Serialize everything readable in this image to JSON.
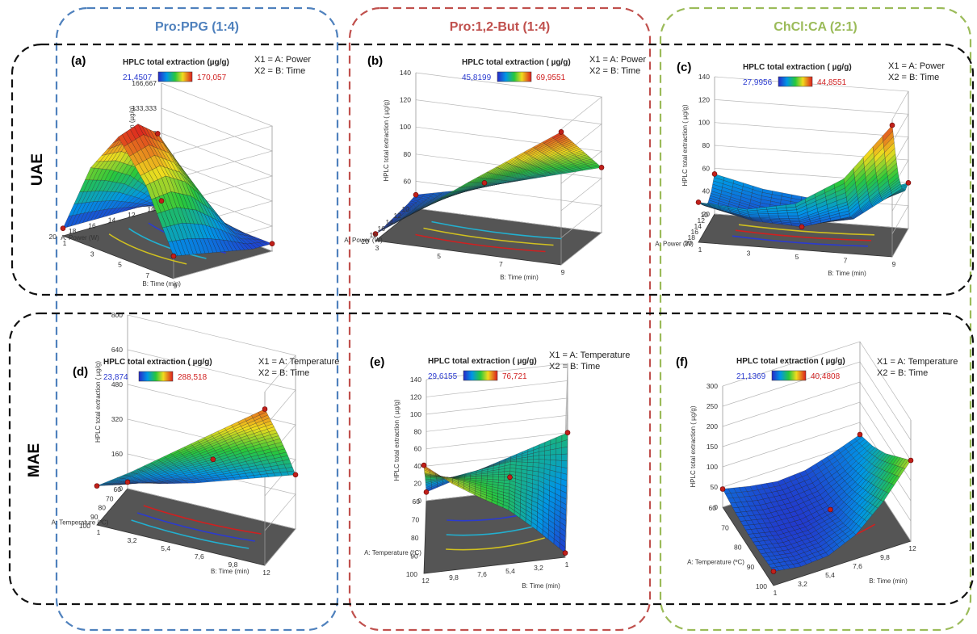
{
  "columns": [
    {
      "label": "Pro:PPG (1:4)",
      "color": "#4f81bd"
    },
    {
      "label": "Pro:1,2-But (1:4)",
      "color": "#c0504d"
    },
    {
      "label": "ChCl:CA (2:1)",
      "color": "#9bbb59"
    }
  ],
  "rows": [
    {
      "label": "UAE"
    },
    {
      "label": "MAE"
    }
  ],
  "chart_data": [
    {
      "type": "surface3d",
      "panel_label": "(a)",
      "legend": {
        "title": "HPLC total extraction (µg/g)",
        "min": "21,4507",
        "max": "170,057"
      },
      "factors": [
        "X1 = A: Power",
        "X2 = B: Time"
      ],
      "zlabel": "HPLC total extraction (µg/g)",
      "xlabel": "A: Power (W)",
      "ylabel": "B: Time (min)",
      "xticks": [
        "10",
        "12",
        "14",
        "16",
        "18",
        "20"
      ],
      "yticks": [
        "1",
        "3",
        "5",
        "7",
        "9"
      ],
      "zticks": [
        "0",
        "33,3333",
        "66,6667",
        "100",
        "133,333",
        "166,667"
      ],
      "zlim": [
        0,
        166.667
      ],
      "surface": [
        [
          10,
          10,
          10,
          10,
          10
        ],
        [
          10,
          25,
          40,
          30,
          10
        ],
        [
          10,
          55,
          105,
          70,
          15
        ],
        [
          10,
          80,
          150,
          100,
          20
        ],
        [
          10,
          95,
          170,
          115,
          25
        ],
        [
          10,
          105,
          160,
          110,
          30
        ]
      ]
    },
    {
      "type": "surface3d",
      "panel_label": "(b)",
      "legend": {
        "title": "HPLC total extraction ( µg/g)",
        "min": "45,8199",
        "max": "69,9551"
      },
      "factors": [
        "X1 = A: Power",
        "X2 = B: Time"
      ],
      "zlabel": "HPLC total extraction ( µg/g)",
      "xlabel": "A: Power (W)",
      "ylabel": "B: Time (min)",
      "xticks": [
        "10",
        "12",
        "14",
        "16",
        "18",
        "20"
      ],
      "yticks": [
        "3",
        "5",
        "7",
        "9"
      ],
      "zticks": [
        "40",
        "60",
        "80",
        "100",
        "120",
        "140"
      ],
      "zlim": [
        40,
        140
      ],
      "surface": [
        [
          50,
          58,
          68,
          78,
          88
        ],
        [
          48,
          60,
          72,
          85,
          98
        ],
        [
          47,
          62,
          77,
          93,
          108
        ],
        [
          46,
          64,
          82,
          100,
          118
        ],
        [
          45,
          66,
          87,
          107,
          128
        ],
        [
          45,
          68,
          92,
          115,
          138
        ]
      ]
    },
    {
      "type": "surface3d",
      "panel_label": "(c)",
      "legend": {
        "title": "HPLC total extraction ( µg/g)",
        "min": "27,9956",
        "max": "44,8551"
      },
      "factors": [
        "X1 = A: Power",
        "X2 = B: Time"
      ],
      "zlabel": "HPLC total extraction ( µg/g)",
      "xlabel": "A: Power (W)",
      "ylabel": "B: Time (min)",
      "xticks": [
        "10",
        "12",
        "14",
        "16",
        "18",
        "20"
      ],
      "yticks": [
        "1",
        "3",
        "5",
        "7",
        "9"
      ],
      "zticks": [
        "20",
        "40",
        "60",
        "80",
        "100",
        "120",
        "140"
      ],
      "zlim": [
        20,
        140
      ],
      "surface": [
        [
          55,
          45,
          40,
          45,
          60
        ],
        [
          45,
          35,
          30,
          38,
          58
        ],
        [
          40,
          30,
          27,
          35,
          65
        ],
        [
          42,
          32,
          30,
          42,
          80
        ],
        [
          48,
          40,
          42,
          60,
          105
        ],
        [
          55,
          52,
          60,
          85,
          135
        ]
      ]
    },
    {
      "type": "surface3d",
      "panel_label": "(d)",
      "legend": {
        "title": "HPLC total extraction ( µg/g)",
        "min": "23,874",
        "max": "288,518"
      },
      "factors": [
        "X1 = A: Temperature",
        "X2 = B: Time"
      ],
      "zlabel": "HPLC total extraction ( µg/g)",
      "xlabel": "A: Temperature (ºC)",
      "ylabel": "B: Time (min)",
      "xticks": [
        "60",
        "70",
        "80",
        "90",
        "100"
      ],
      "yticks": [
        "1",
        "3,2",
        "5,4",
        "7,6",
        "9,8",
        "12"
      ],
      "zticks": [
        "0",
        "160",
        "320",
        "480",
        "640",
        "800"
      ],
      "zlim": [
        0,
        800
      ],
      "surface": [
        [
          30,
          60,
          100,
          150,
          200,
          250
        ],
        [
          60,
          110,
          170,
          240,
          310,
          380
        ],
        [
          100,
          170,
          250,
          330,
          420,
          500
        ],
        [
          140,
          230,
          320,
          420,
          520,
          610
        ],
        [
          180,
          280,
          390,
          500,
          610,
          720
        ]
      ]
    },
    {
      "type": "surface3d",
      "panel_label": "(e)",
      "legend": {
        "title": "HPLC total extraction ( µg/g)",
        "min": "29,6155",
        "max": "76,721"
      },
      "factors": [
        "X1 = A: Temperature",
        "X2 = B: Time"
      ],
      "zlabel": "HPLC total extraction ( µg/g)",
      "xlabel": "A: Temperature (ºC)",
      "ylabel": "B: Time (min)",
      "xticks": [
        "60",
        "70",
        "80",
        "90",
        "100"
      ],
      "yticks": [
        "12",
        "9,8",
        "7,6",
        "5,4",
        "3,2",
        "1"
      ],
      "zticks": [
        "0",
        "20",
        "40",
        "60",
        "80",
        "100",
        "120",
        "140"
      ],
      "zlim": [
        0,
        140
      ],
      "surface": [
        [
          10,
          20,
          30,
          40,
          50,
          60
        ],
        [
          40,
          45,
          50,
          55,
          50,
          40
        ],
        [
          70,
          65,
          62,
          58,
          45,
          25
        ],
        [
          95,
          85,
          72,
          60,
          40,
          15
        ],
        [
          125,
          100,
          80,
          62,
          35,
          5
        ]
      ]
    },
    {
      "type": "surface3d",
      "panel_label": "(f)",
      "legend": {
        "title": "HPLC total extraction ( µg/g)",
        "min": "21,1369",
        "max": "40,4808"
      },
      "factors": [
        "X1 = A: Temperature",
        "X2 = B: Time"
      ],
      "zlabel": "HPLC total extraction ( µg/g)",
      "xlabel": "A: Temperature (ºC)",
      "ylabel": "B: Time (min)",
      "xticks": [
        "60",
        "70",
        "80",
        "90",
        "100"
      ],
      "yticks": [
        "1",
        "3,2",
        "5,4",
        "7,6",
        "9,8",
        "12"
      ],
      "zticks": [
        "0",
        "50",
        "100",
        "150",
        "200",
        "250",
        "300"
      ],
      "zlim": [
        0,
        300
      ],
      "surface": [
        [
          45,
          30,
          20,
          25,
          45,
          70
        ],
        [
          35,
          20,
          15,
          22,
          50,
          90
        ],
        [
          30,
          15,
          12,
          25,
          65,
          120
        ],
        [
          30,
          18,
          20,
          40,
          90,
          160
        ],
        [
          35,
          25,
          30,
          60,
          120,
          200
        ]
      ]
    }
  ]
}
